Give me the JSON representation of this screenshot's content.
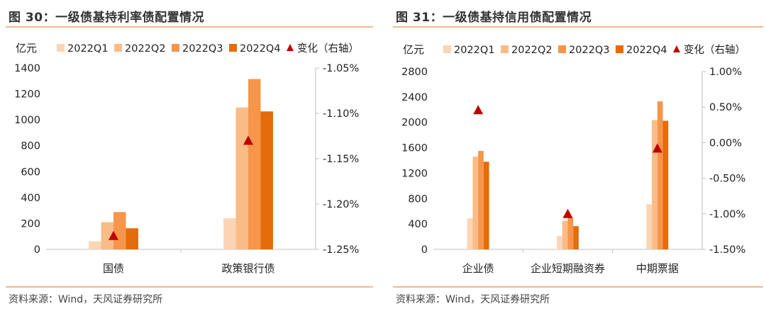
{
  "left": {
    "title": "图 30：一级债基持利率债配置情况",
    "source": "资料来源：Wind，天风证券研究所",
    "chart_data": {
      "type": "bar",
      "y_unit": "亿元",
      "categories": [
        "国债",
        "政策银行债"
      ],
      "series": [
        {
          "name": "2022Q1",
          "color": "#fbd5b5",
          "values": [
            62,
            240
          ]
        },
        {
          "name": "2022Q2",
          "color": "#f9bc87",
          "values": [
            210,
            1095
          ]
        },
        {
          "name": "2022Q3",
          "color": "#f5964b",
          "values": [
            288,
            1315
          ]
        },
        {
          "name": "2022Q4",
          "color": "#e46c0a",
          "values": [
            163,
            1065
          ]
        }
      ],
      "marker_series": {
        "name": "变化（右轴）",
        "color": "#c00000",
        "values": [
          -1.235,
          -1.13
        ]
      },
      "ylim": [
        0,
        1400
      ],
      "yticks": [
        0,
        200,
        400,
        600,
        800,
        1000,
        1200,
        1400
      ],
      "y2lim": [
        -1.25,
        -1.05
      ],
      "y2ticks": [
        -1.25,
        -1.2,
        -1.15,
        -1.1,
        -1.05
      ],
      "y2tick_labels": [
        "-1.25%",
        "-1.20%",
        "-1.15%",
        "-1.10%",
        "-1.05%"
      ]
    }
  },
  "right": {
    "title": "图 31：一级债基持信用债配置情况",
    "source": "资料来源：Wind，天风证券研究所",
    "chart_data": {
      "type": "bar",
      "y_unit": "亿元",
      "categories": [
        "企业债",
        "企业短期融资券",
        "中期票据"
      ],
      "series": [
        {
          "name": "2022Q1",
          "color": "#fbd5b5",
          "values": [
            490,
            210,
            710
          ]
        },
        {
          "name": "2022Q2",
          "color": "#f9bc87",
          "values": [
            1460,
            450,
            2035
          ]
        },
        {
          "name": "2022Q3",
          "color": "#f5964b",
          "values": [
            1550,
            500,
            2330
          ]
        },
        {
          "name": "2022Q4",
          "color": "#e46c0a",
          "values": [
            1380,
            365,
            2025
          ]
        }
      ],
      "marker_series": {
        "name": "变化（右轴）",
        "color": "#c00000",
        "values": [
          0.46,
          -1.0,
          -0.08
        ]
      },
      "ylim": [
        0,
        2800
      ],
      "yticks": [
        0,
        400,
        800,
        1200,
        1600,
        2000,
        2400,
        2800
      ],
      "y2lim": [
        -1.5,
        1.0
      ],
      "y2ticks": [
        -1.5,
        -1.0,
        -0.5,
        0.0,
        0.5,
        1.0
      ],
      "y2tick_labels": [
        "-1.50%",
        "-1.00%",
        "-0.50%",
        "0.00%",
        "0.50%",
        "1.00%"
      ]
    }
  }
}
